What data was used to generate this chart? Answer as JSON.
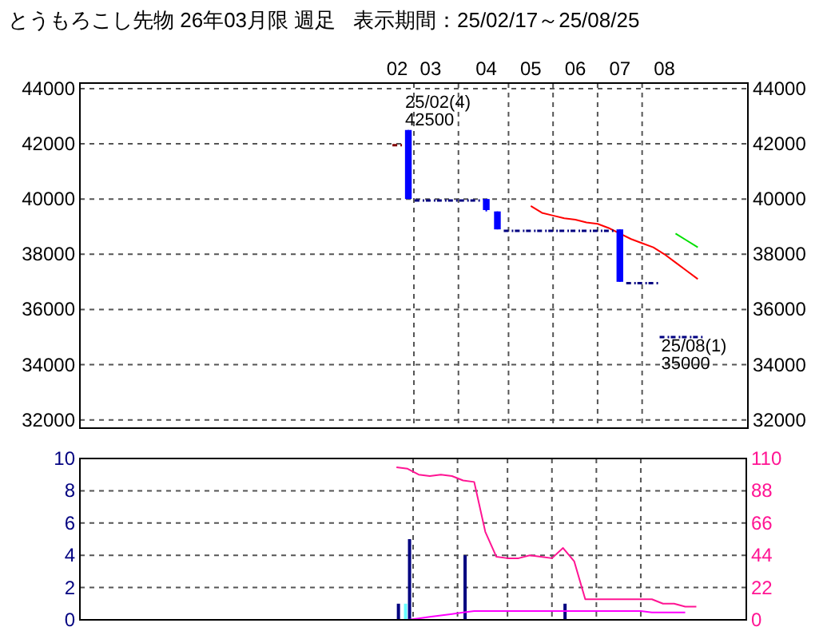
{
  "chart_data": [
    {
      "type": "candlestick",
      "title": "とうもろこし先物 26年03月限 週足   表示期間：25/02/17～25/08/25",
      "categories": [
        null,
        null,
        null,
        null,
        null,
        null,
        null,
        null,
        null,
        null,
        null,
        null,
        null,
        null,
        null,
        null,
        null,
        null,
        null,
        null,
        null,
        null,
        null,
        null,
        null,
        null,
        null,
        null,
        "02",
        null,
        null,
        "03",
        null,
        null,
        null,
        null,
        "04",
        null,
        null,
        null,
        "05",
        null,
        null,
        null,
        "06",
        null,
        null,
        null,
        "07",
        null,
        null,
        null,
        "08",
        null,
        null,
        null,
        null,
        null,
        null,
        null
      ],
      "ohlc": [
        null,
        null,
        null,
        null,
        null,
        null,
        null,
        null,
        null,
        null,
        null,
        null,
        null,
        null,
        null,
        null,
        null,
        null,
        null,
        null,
        null,
        null,
        null,
        null,
        null,
        null,
        null,
        null,
        [
          41950,
          41950,
          41950,
          41950
        ],
        [
          42500,
          42500,
          40000,
          40000
        ],
        [
          39950,
          39950,
          39950,
          39950
        ],
        [
          39950,
          39950,
          39950,
          39950
        ],
        [
          39950,
          39950,
          39950,
          39950
        ],
        [
          39950,
          39950,
          39950,
          39950
        ],
        [
          39950,
          39950,
          39950,
          39950
        ],
        [
          39950,
          39950,
          39950,
          39950
        ],
        [
          40000,
          40000,
          39550,
          39600
        ],
        [
          39550,
          39550,
          38900,
          38900
        ],
        [
          38850,
          38850,
          38850,
          38850
        ],
        [
          38850,
          38850,
          38850,
          38850
        ],
        [
          38850,
          38850,
          38850,
          38850
        ],
        [
          38850,
          38850,
          38850,
          38850
        ],
        [
          38850,
          38850,
          38850,
          38850
        ],
        [
          38850,
          38850,
          38850,
          38850
        ],
        [
          38850,
          38850,
          38850,
          38850
        ],
        [
          38850,
          38850,
          38850,
          38850
        ],
        [
          38850,
          38850,
          38850,
          38850
        ],
        [
          38850,
          38850,
          38850,
          38850
        ],
        [
          38900,
          38900,
          37000,
          37000
        ],
        [
          36950,
          36950,
          36950,
          36950
        ],
        [
          36950,
          36950,
          36950,
          36950
        ],
        [
          36950,
          36950,
          36950,
          36950
        ],
        [
          35000,
          35000,
          35000,
          35000
        ],
        [
          35000,
          35000,
          35000,
          35000
        ],
        [
          35000,
          35000,
          35000,
          35000
        ],
        [
          35000,
          35000,
          35000,
          35000
        ],
        null,
        null,
        null,
        null
      ],
      "colors": [
        null,
        null,
        null,
        null,
        null,
        null,
        null,
        null,
        null,
        null,
        null,
        null,
        null,
        null,
        null,
        null,
        null,
        null,
        null,
        null,
        null,
        null,
        null,
        null,
        null,
        null,
        null,
        null,
        "#800000",
        "#0000ff",
        "#000080",
        "#000080",
        "#000080",
        "#000080",
        "#000080",
        "#000080",
        "#0000ff",
        "#0000ff",
        "#000080",
        "#000080",
        "#000080",
        "#000080",
        "#000080",
        "#000080",
        "#000080",
        "#000080",
        "#000080",
        "#000080",
        "#0000ff",
        "#000080",
        "#000080",
        "#000080",
        "#000080",
        "#000080",
        "#000080",
        "#000080",
        null,
        null,
        null,
        null
      ],
      "series": [
        {
          "type": "line",
          "color": "#ff0000",
          "values": [
            null,
            null,
            null,
            null,
            null,
            null,
            null,
            null,
            null,
            null,
            null,
            null,
            null,
            null,
            null,
            null,
            null,
            null,
            null,
            null,
            null,
            null,
            null,
            null,
            null,
            null,
            null,
            null,
            null,
            null,
            null,
            null,
            null,
            null,
            null,
            null,
            null,
            null,
            null,
            null,
            39750,
            39500,
            39400,
            39300,
            39250,
            39150,
            39100,
            38950,
            38750,
            38550,
            38400,
            38250,
            38000,
            37700,
            37400,
            37100,
            null,
            null,
            null,
            null
          ]
        },
        {
          "type": "line",
          "color": "#00e000",
          "values": [
            null,
            null,
            null,
            null,
            null,
            null,
            null,
            null,
            null,
            null,
            null,
            null,
            null,
            null,
            null,
            null,
            null,
            null,
            null,
            null,
            null,
            null,
            null,
            null,
            null,
            null,
            null,
            null,
            null,
            null,
            null,
            null,
            null,
            null,
            null,
            null,
            null,
            null,
            null,
            null,
            null,
            null,
            null,
            null,
            null,
            null,
            null,
            null,
            null,
            null,
            null,
            null,
            null,
            38750,
            38500,
            38250,
            null,
            null,
            null,
            null
          ]
        }
      ],
      "annotations": [
        "25/02(4)\n42500",
        {
          "text": "25/08(1)\n35000",
          "y": 35000
        }
      ],
      "ylim": [
        31700,
        44200
      ],
      "yticks": [
        32000,
        34000,
        36000,
        38000,
        40000,
        42000,
        44000
      ],
      "y2lim": [
        31700,
        44200
      ],
      "y2ticks": [
        32000,
        34000,
        36000,
        38000,
        40000,
        42000,
        44000
      ],
      "grid": true
    },
    {
      "type": "bar",
      "tick_labels": "y",
      "categories": [
        null,
        null,
        null,
        null,
        null,
        null,
        null,
        null,
        null,
        null,
        null,
        null,
        null,
        null,
        null,
        null,
        null,
        null,
        null,
        null,
        null,
        null,
        null,
        null,
        null,
        null,
        null,
        null,
        null,
        null,
        null,
        null,
        null,
        null,
        null,
        null,
        null,
        null,
        null,
        null,
        null,
        null,
        null,
        null,
        null,
        null,
        null,
        null,
        null,
        null,
        null,
        null,
        null,
        null,
        null,
        null,
        null,
        null,
        null,
        null
      ],
      "series": [
        {
          "type": "bar",
          "color": "#66ffff",
          "values": [
            null,
            null,
            null,
            null,
            null,
            null,
            null,
            null,
            null,
            null,
            null,
            null,
            null,
            null,
            null,
            null,
            null,
            null,
            null,
            null,
            null,
            null,
            null,
            null,
            null,
            null,
            null,
            null,
            null,
            1,
            null,
            null,
            null,
            null,
            null,
            null,
            null,
            null,
            null,
            null,
            null,
            null,
            null,
            null,
            null,
            null,
            null,
            null,
            null,
            null,
            null,
            null,
            null,
            null,
            null,
            null,
            null,
            null,
            null,
            null
          ]
        },
        {
          "type": "bar",
          "color": "#000080",
          "values": [
            null,
            null,
            null,
            null,
            null,
            null,
            null,
            null,
            null,
            null,
            null,
            null,
            null,
            null,
            null,
            null,
            null,
            null,
            null,
            null,
            null,
            null,
            null,
            null,
            null,
            null,
            null,
            null,
            1,
            5,
            null,
            null,
            null,
            null,
            4,
            null,
            null,
            null,
            null,
            null,
            null,
            null,
            null,
            1,
            null,
            null,
            null,
            null,
            null,
            null,
            null,
            null,
            null,
            null,
            null,
            null,
            null,
            null,
            null,
            null
          ]
        },
        {
          "type": "line",
          "axis": "y2",
          "color": "#ff1493",
          "values": [
            null,
            null,
            null,
            null,
            null,
            null,
            null,
            null,
            null,
            null,
            null,
            null,
            null,
            null,
            null,
            null,
            null,
            null,
            null,
            null,
            null,
            null,
            null,
            null,
            null,
            null,
            null,
            null,
            104,
            103,
            99,
            98,
            99,
            98,
            95,
            94,
            60,
            43,
            42,
            42,
            44,
            43,
            42,
            49,
            40,
            14,
            14,
            14,
            14,
            14,
            14,
            14,
            11,
            11,
            9,
            9,
            null,
            null,
            null,
            null
          ]
        },
        {
          "type": "line",
          "axis": "y2",
          "color": "#ff00ff",
          "values": [
            null,
            null,
            null,
            null,
            null,
            null,
            null,
            null,
            null,
            null,
            null,
            null,
            null,
            null,
            null,
            null,
            null,
            null,
            null,
            null,
            null,
            null,
            null,
            null,
            null,
            null,
            null,
            null,
            null,
            0,
            1,
            2,
            3,
            4,
            5,
            6,
            6,
            6,
            6,
            6,
            6,
            6,
            6,
            6,
            6,
            6,
            6,
            6,
            6,
            6,
            6,
            5,
            5,
            5,
            5,
            null,
            null,
            null,
            null,
            null
          ]
        }
      ],
      "ylim": [
        0,
        10
      ],
      "yticks": [
        0,
        2,
        4,
        6,
        8,
        10
      ],
      "y2lim": [
        0,
        110
      ],
      "y2ticks": [
        0,
        22,
        44,
        66,
        88,
        110
      ],
      "grid": true
    }
  ]
}
